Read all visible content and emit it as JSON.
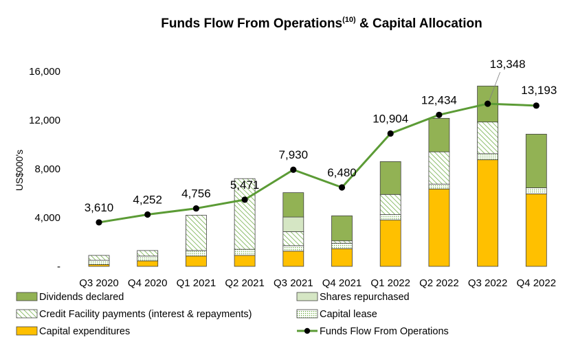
{
  "chart_data": {
    "type": "bar",
    "title": "Funds Flow From Operations",
    "title_superscript": "(10)",
    "title_suffix": " & Capital Allocation",
    "ylabel": "US$000's",
    "xlabel": "",
    "ylim": [
      0,
      16000
    ],
    "yticks": [
      0,
      4000,
      8000,
      12000,
      16000
    ],
    "ytick_labels": [
      "-",
      "4,000",
      "8,000",
      "12,000",
      "16,000"
    ],
    "grid": false,
    "stacked": true,
    "legend_position": "bottom",
    "categories": [
      "Q3 2020",
      "Q4 2020",
      "Q1 2021",
      "Q2 2021",
      "Q3 2021",
      "Q4 2021",
      "Q1 2022",
      "Q2 2022",
      "Q3 2022",
      "Q4 2022"
    ],
    "series": [
      {
        "name": "Capital expenditures",
        "kind": "bar",
        "pattern": "solid",
        "color": "#FFC000",
        "values": [
          150,
          450,
          850,
          900,
          1250,
          1450,
          3800,
          6350,
          8750,
          5950
        ]
      },
      {
        "name": "Capital lease",
        "kind": "bar",
        "pattern": "dots",
        "color": "#70AD47",
        "values": [
          350,
          400,
          450,
          500,
          450,
          450,
          450,
          400,
          500,
          500
        ]
      },
      {
        "name": "Credit Facility payments (interest & repayments)",
        "kind": "bar",
        "pattern": "diagonal",
        "color": "#70AD47",
        "values": [
          400,
          450,
          2900,
          5800,
          1150,
          200,
          1650,
          2650,
          2600,
          0
        ]
      },
      {
        "name": "Shares repurchased",
        "kind": "bar",
        "pattern": "light",
        "color": "#D5E6C4",
        "values": [
          0,
          0,
          0,
          0,
          1200,
          0,
          0,
          0,
          0,
          0
        ]
      },
      {
        "name": "Dividends declared",
        "kind": "bar",
        "pattern": "solid",
        "color": "#92B254",
        "values": [
          0,
          0,
          0,
          0,
          2000,
          2050,
          2700,
          2750,
          2950,
          4400
        ]
      },
      {
        "name": "Funds Flow From Operations",
        "kind": "line",
        "color": "#5B9B35",
        "values": [
          3610,
          4252,
          4756,
          5471,
          7930,
          6480,
          10904,
          12434,
          13348,
          13193
        ],
        "labels": [
          "3,610",
          "4,252",
          "4,756",
          "5,471",
          "7,930",
          "6,480",
          "10,904",
          "12,434",
          "13,348",
          "13,193"
        ]
      }
    ],
    "legend": [
      "Dividends declared",
      "Shares repurchased",
      "Credit Facility payments (interest & repayments)",
      "Capital lease",
      "Capital expenditures",
      "Funds Flow From Operations"
    ]
  }
}
